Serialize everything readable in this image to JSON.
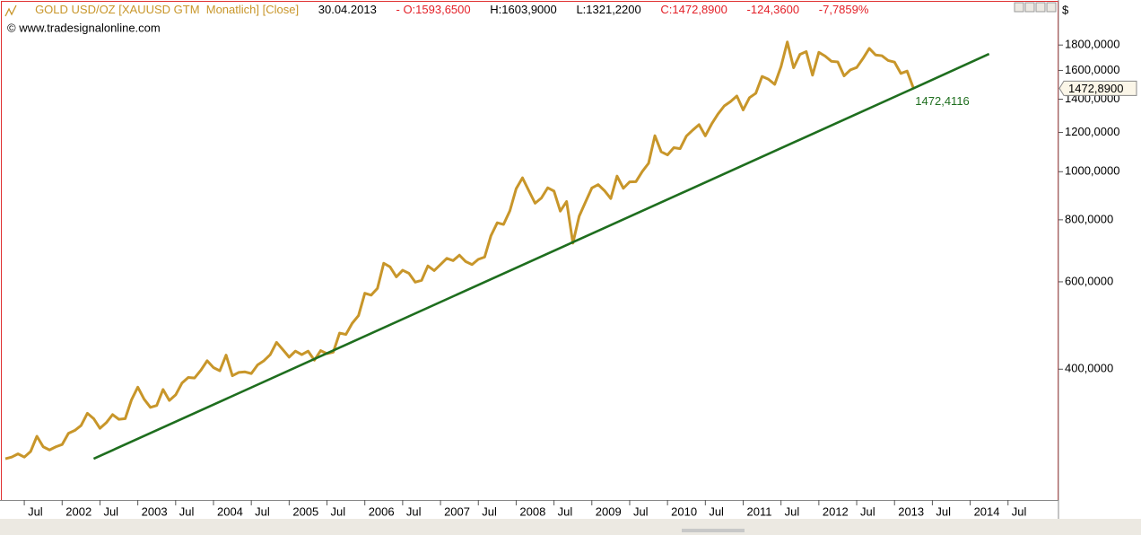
{
  "chart_data": {
    "type": "line",
    "header": {
      "series_label": "GOLD USD/OZ [XAUUSD GTM  Monatlich] [Close]",
      "date": "30.04.2013",
      "open": "O:1593,6500",
      "high": "H:1603,9000",
      "low": "L:1321,2200",
      "close": "C:1472,8900",
      "change": "-124,3600",
      "change_pct": "-7,7859%"
    },
    "subtitle": "www.tradesignalonline.com",
    "y_unit": "$",
    "log_scale": true,
    "xlim": [
      "2001-04",
      "2015-03"
    ],
    "ylim": [
      218,
      2200
    ],
    "yticks": [
      {
        "value": 400,
        "label": "400,0000"
      },
      {
        "value": 600,
        "label": "600,0000"
      },
      {
        "value": 800,
        "label": "800,0000"
      },
      {
        "value": 1000,
        "label": "1000,0000"
      },
      {
        "value": 1200,
        "label": "1200,0000"
      },
      {
        "value": 1400,
        "label": "1400,0000"
      },
      {
        "value": 1600,
        "label": "1600,0000"
      },
      {
        "value": 1800,
        "label": "1800,0000"
      }
    ],
    "xticks": [
      {
        "value": "2001-07",
        "label": "Jul"
      },
      {
        "value": "2002-01",
        "label": "2002"
      },
      {
        "value": "2002-07",
        "label": "Jul"
      },
      {
        "value": "2003-01",
        "label": "2003"
      },
      {
        "value": "2003-07",
        "label": "Jul"
      },
      {
        "value": "2004-01",
        "label": "2004"
      },
      {
        "value": "2004-07",
        "label": "Jul"
      },
      {
        "value": "2005-01",
        "label": "2005"
      },
      {
        "value": "2005-07",
        "label": "Jul"
      },
      {
        "value": "2006-01",
        "label": "2006"
      },
      {
        "value": "2006-07",
        "label": "Jul"
      },
      {
        "value": "2007-01",
        "label": "2007"
      },
      {
        "value": "2007-07",
        "label": "Jul"
      },
      {
        "value": "2008-01",
        "label": "2008"
      },
      {
        "value": "2008-07",
        "label": "Jul"
      },
      {
        "value": "2009-01",
        "label": "2009"
      },
      {
        "value": "2009-07",
        "label": "Jul"
      },
      {
        "value": "2010-01",
        "label": "2010"
      },
      {
        "value": "2010-07",
        "label": "Jul"
      },
      {
        "value": "2011-01",
        "label": "2011"
      },
      {
        "value": "2011-07",
        "label": "Jul"
      },
      {
        "value": "2012-01",
        "label": "2012"
      },
      {
        "value": "2012-07",
        "label": "Jul"
      },
      {
        "value": "2013-01",
        "label": "2013"
      },
      {
        "value": "2013-07",
        "label": "Jul"
      },
      {
        "value": "2014-01",
        "label": "2014"
      },
      {
        "value": "2014-07",
        "label": "Jul"
      }
    ],
    "last_price": {
      "value": 1472.89,
      "label": "1472,8900"
    },
    "series": [
      {
        "color": "#c8962a",
        "x": [
          "2001-04",
          "2001-05",
          "2001-06",
          "2001-07",
          "2001-08",
          "2001-09",
          "2001-10",
          "2001-11",
          "2001-12",
          "2002-01",
          "2002-02",
          "2002-03",
          "2002-04",
          "2002-05",
          "2002-06",
          "2002-07",
          "2002-08",
          "2002-09",
          "2002-10",
          "2002-11",
          "2002-12",
          "2003-01",
          "2003-02",
          "2003-03",
          "2003-04",
          "2003-05",
          "2003-06",
          "2003-07",
          "2003-08",
          "2003-09",
          "2003-10",
          "2003-11",
          "2003-12",
          "2004-01",
          "2004-02",
          "2004-03",
          "2004-04",
          "2004-05",
          "2004-06",
          "2004-07",
          "2004-08",
          "2004-09",
          "2004-10",
          "2004-11",
          "2004-12",
          "2005-01",
          "2005-02",
          "2005-03",
          "2005-04",
          "2005-05",
          "2005-06",
          "2005-07",
          "2005-08",
          "2005-09",
          "2005-10",
          "2005-11",
          "2005-12",
          "2006-01",
          "2006-02",
          "2006-03",
          "2006-04",
          "2006-05",
          "2006-06",
          "2006-07",
          "2006-08",
          "2006-09",
          "2006-10",
          "2006-11",
          "2006-12",
          "2007-01",
          "2007-02",
          "2007-03",
          "2007-04",
          "2007-05",
          "2007-06",
          "2007-07",
          "2007-08",
          "2007-09",
          "2007-10",
          "2007-11",
          "2007-12",
          "2008-01",
          "2008-02",
          "2008-03",
          "2008-04",
          "2008-05",
          "2008-06",
          "2008-07",
          "2008-08",
          "2008-09",
          "2008-10",
          "2008-11",
          "2008-12",
          "2009-01",
          "2009-02",
          "2009-03",
          "2009-04",
          "2009-05",
          "2009-06",
          "2009-07",
          "2009-08",
          "2009-09",
          "2009-10",
          "2009-11",
          "2009-12",
          "2010-01",
          "2010-02",
          "2010-03",
          "2010-04",
          "2010-05",
          "2010-06",
          "2010-07",
          "2010-08",
          "2010-09",
          "2010-10",
          "2010-11",
          "2010-12",
          "2011-01",
          "2011-02",
          "2011-03",
          "2011-04",
          "2011-05",
          "2011-06",
          "2011-07",
          "2011-08",
          "2011-09",
          "2011-10",
          "2011-11",
          "2011-12",
          "2012-01",
          "2012-02",
          "2012-03",
          "2012-04",
          "2012-05",
          "2012-06",
          "2012-07",
          "2012-08",
          "2012-09",
          "2012-10",
          "2012-11",
          "2012-12",
          "2013-01",
          "2013-02",
          "2013-03",
          "2013-04"
        ],
        "values": [
          264,
          266,
          270,
          266,
          273,
          293,
          279,
          275,
          279,
          282,
          297,
          301,
          308,
          326,
          318,
          304,
          312,
          324,
          317,
          318,
          347,
          368,
          348,
          335,
          338,
          364,
          346,
          355,
          375,
          385,
          384,
          398,
          416,
          403,
          397,
          427,
          388,
          394,
          395,
          392,
          408,
          416,
          428,
          453,
          438,
          423,
          435,
          428,
          435,
          417,
          436,
          430,
          433,
          473,
          470,
          495,
          513,
          569,
          564,
          582,
          654,
          643,
          614,
          633,
          624,
          599,
          604,
          646,
          632,
          650,
          669,
          662,
          679,
          659,
          650,
          666,
          673,
          743,
          789,
          783,
          834,
          924,
          972,
          916,
          864,
          885,
          928,
          914,
          833,
          871,
          718,
          814,
          869,
          927,
          942,
          916,
          883,
          980,
          926,
          954,
          955,
          1001,
          1040,
          1182,
          1097,
          1081,
          1118,
          1113,
          1180,
          1213,
          1244,
          1181,
          1248,
          1307,
          1357,
          1385,
          1421,
          1332,
          1410,
          1439,
          1556,
          1536,
          1500,
          1628,
          1826,
          1620,
          1723,
          1746,
          1565,
          1740,
          1710,
          1669,
          1664,
          1560,
          1604,
          1622,
          1691,
          1772,
          1719,
          1713,
          1675,
          1663,
          1578,
          1595,
          1472.89
        ]
      },
      {
        "color": "#1e6e1e",
        "x": [
          "2002-06",
          "2013-04",
          "2014-04"
        ],
        "values": [
          264,
          1472.4116,
          1727
        ],
        "value_labels": [
          null,
          "1472,4116",
          null
        ]
      }
    ]
  }
}
